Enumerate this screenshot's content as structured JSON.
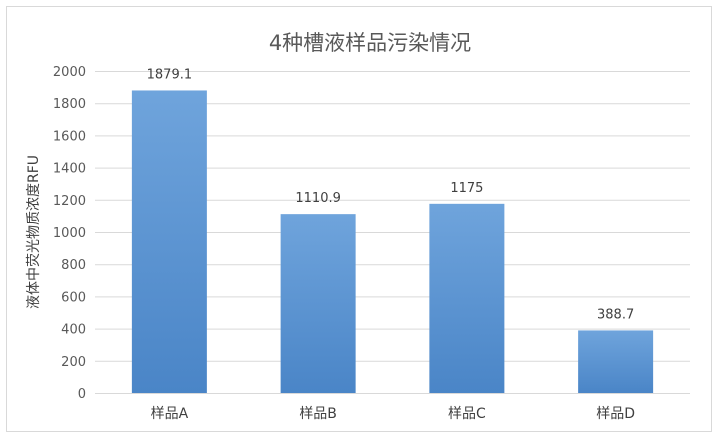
{
  "chart_data": {
    "type": "bar",
    "title": "4种槽液样品污染情况",
    "xlabel": "",
    "ylabel": "液体中荧光物质浓度RFU",
    "categories": [
      "样品A",
      "样品B",
      "样品C",
      "样品D"
    ],
    "values": [
      1879.1,
      1110.9,
      1175,
      388.7
    ],
    "data_labels": [
      "1879.1",
      "1110.9",
      "1175",
      "388.7"
    ],
    "ylim": [
      0,
      2000
    ],
    "yticks": [
      0,
      200,
      400,
      600,
      800,
      1000,
      1200,
      1400,
      1600,
      1800,
      2000
    ],
    "grid": true,
    "legend": "none",
    "colors": {
      "bar_top": "#6fa4dc",
      "bar_bottom": "#4a85c7",
      "grid": "#d9d9d9",
      "text": "#595959"
    }
  }
}
